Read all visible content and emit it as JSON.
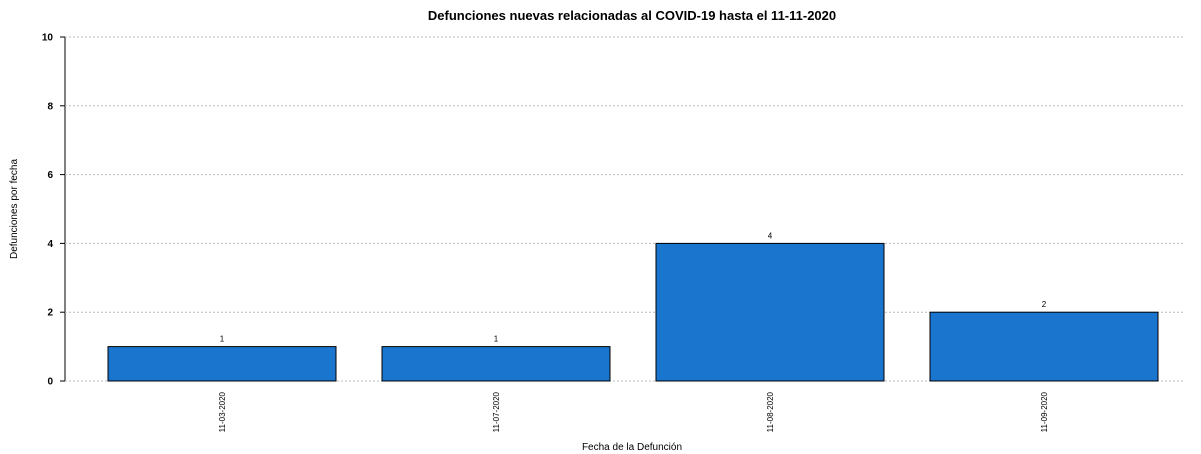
{
  "chart_data": {
    "type": "bar",
    "title": "Defunciones nuevas relacionadas al COVID-19 hasta el 11-11-2020",
    "x_label": "Fecha de la Defunción",
    "y_label": "Defunciones por fecha",
    "categories": [
      "11-03-2020",
      "11-07-2020",
      "11-08-2020",
      "11-09-2020"
    ],
    "values": [
      1,
      1,
      4,
      2
    ],
    "color": "#1a75cf",
    "ylim": [
      0,
      10
    ],
    "yticks": [
      0,
      2,
      4,
      6,
      8,
      10
    ],
    "grid": true
  }
}
